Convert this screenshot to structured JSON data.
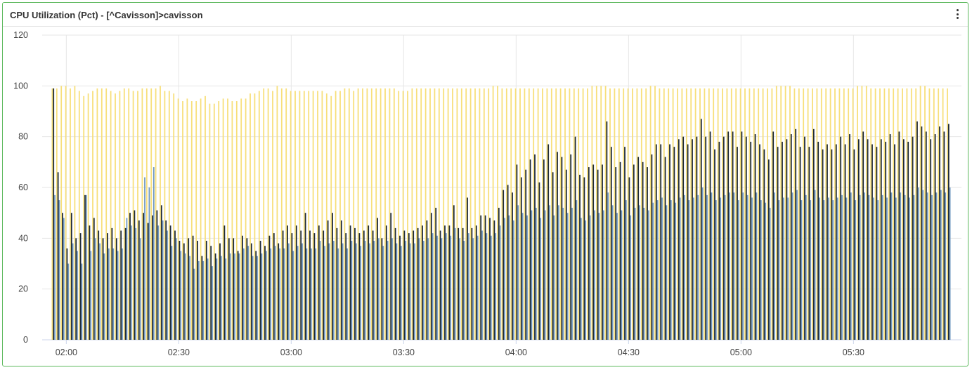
{
  "panel": {
    "title": "CPU Utilization (Pct) - [^Cavisson]>cavisson",
    "menu_icon": "more-vertical-icon"
  },
  "colors": {
    "border": "#5cb85c",
    "series_total": "#f7df7a",
    "series_user": "#1f2a36",
    "series_system": "#6f98c0",
    "grid": "#e6e6e6"
  },
  "chart_data": {
    "type": "bar",
    "title": "CPU Utilization (Pct) - [^Cavisson]>cavisson",
    "xlabel": "",
    "ylabel": "",
    "ylim": [
      0,
      120
    ],
    "yticks": [
      "0",
      "20",
      "40",
      "60",
      "80",
      "100",
      "120"
    ],
    "xticks": [
      "02:00",
      "02:30",
      "03:00",
      "03:30",
      "04:00",
      "04:30",
      "05:00",
      "05:30"
    ],
    "x_range": [
      "01:56",
      "05:56"
    ],
    "interval_minutes": 2,
    "grid": true,
    "legend": "none",
    "series": [
      {
        "values": [
          99,
          99,
          100,
          100,
          99,
          100,
          98,
          96,
          97,
          98,
          99,
          99,
          99,
          98,
          97,
          98,
          99,
          99,
          98,
          98,
          99,
          99,
          99,
          99,
          100,
          98,
          98,
          97,
          95,
          94,
          95,
          94,
          94,
          95,
          96,
          93,
          93,
          94,
          95,
          95,
          94,
          94,
          95,
          95,
          97,
          97,
          98,
          99,
          99,
          98,
          100,
          99,
          99,
          98,
          98,
          98,
          98,
          98,
          98,
          98,
          98,
          97,
          96,
          98,
          98,
          99,
          99,
          98,
          99,
          99,
          99,
          99,
          99,
          99,
          99,
          99,
          99,
          98,
          98,
          98,
          99,
          99,
          99,
          99,
          99,
          99,
          99,
          99,
          99,
          99,
          99,
          99,
          99,
          99,
          99,
          99,
          99,
          99,
          100,
          100,
          99,
          99,
          99,
          99,
          99,
          99,
          99,
          99,
          99,
          99,
          99,
          99,
          99,
          99,
          99,
          99,
          99,
          99,
          99,
          99,
          100,
          100,
          100,
          100,
          99,
          99,
          99,
          99,
          99,
          99,
          99,
          99,
          99,
          100,
          100,
          99,
          99,
          99,
          99,
          99,
          99,
          99,
          99,
          99,
          99,
          99,
          99,
          99,
          99,
          99,
          99,
          99,
          99,
          99,
          99,
          99,
          99,
          99,
          99,
          99,
          99,
          100,
          100,
          100,
          100,
          99,
          99,
          99,
          99,
          99,
          99,
          99,
          99,
          99,
          99,
          99,
          99,
          99,
          99,
          100,
          100,
          100,
          99,
          99,
          99,
          99,
          99,
          99,
          99,
          99,
          99,
          99,
          99,
          100,
          100,
          99,
          99,
          99,
          99,
          99
        ]
      },
      {
        "values": [
          99,
          66,
          50,
          36,
          50,
          40,
          42,
          57,
          45,
          48,
          43,
          40,
          42,
          44,
          40,
          43,
          44,
          50,
          51,
          47,
          50,
          46,
          49,
          51,
          53,
          47,
          45,
          43,
          39,
          38,
          40,
          41,
          39,
          33,
          39,
          37,
          34,
          38,
          45,
          40,
          40,
          35,
          41,
          40,
          38,
          35,
          39,
          37,
          41,
          42,
          38,
          43,
          45,
          42,
          45,
          43,
          50,
          43,
          42,
          45,
          43,
          47,
          50,
          44,
          47,
          42,
          45,
          44,
          42,
          43,
          45,
          43,
          48,
          40,
          45,
          50,
          44,
          41,
          43,
          42,
          43,
          44,
          45,
          47,
          50,
          52,
          43,
          45,
          45,
          53,
          44,
          44,
          56,
          44,
          45,
          49,
          49,
          48,
          47,
          52,
          59,
          61,
          58,
          69,
          64,
          67,
          71,
          73,
          62,
          71,
          77,
          66,
          74,
          72,
          67,
          73,
          80,
          65,
          64,
          68,
          69,
          67,
          69,
          86,
          76,
          68,
          70,
          76,
          64,
          69,
          72,
          70,
          68,
          73,
          77,
          77,
          72,
          77,
          76,
          79,
          80,
          77,
          79,
          80,
          87,
          80,
          82,
          75,
          78,
          80,
          82,
          82,
          76,
          82,
          80,
          78,
          81,
          77,
          75,
          71,
          82,
          76,
          78,
          79,
          81,
          83,
          76,
          80,
          76,
          83,
          78,
          75,
          77,
          75,
          77,
          80,
          77,
          81,
          75,
          79,
          82,
          79,
          77,
          76,
          79,
          78,
          81,
          77,
          82,
          79,
          78,
          80,
          86,
          84,
          82,
          79,
          81,
          84,
          82,
          85
        ]
      },
      {
        "values": [
          57,
          55,
          48,
          30,
          38,
          35,
          30,
          57,
          35,
          40,
          38,
          34,
          36,
          36,
          35,
          36,
          48,
          45,
          44,
          40,
          64,
          60,
          68,
          45,
          47,
          43,
          37,
          40,
          35,
          34,
          33,
          28,
          31,
          31,
          32,
          29,
          32,
          33,
          32,
          34,
          34,
          34,
          36,
          37,
          33,
          33,
          34,
          35,
          36,
          37,
          36,
          36,
          38,
          35,
          37,
          38,
          36,
          36,
          36,
          39,
          37,
          38,
          39,
          36,
          38,
          36,
          39,
          38,
          37,
          39,
          38,
          39,
          40,
          37,
          39,
          40,
          38,
          37,
          39,
          38,
          38,
          40,
          39,
          40,
          42,
          41,
          40,
          42,
          41,
          44,
          40,
          39,
          42,
          40,
          41,
          43,
          42,
          41,
          42,
          45,
          48,
          49,
          47,
          53,
          50,
          49,
          51,
          52,
          48,
          51,
          53,
          49,
          53,
          52,
          50,
          52,
          55,
          48,
          47,
          49,
          51,
          50,
          51,
          58,
          53,
          50,
          51,
          55,
          49,
          52,
          53,
          52,
          51,
          54,
          55,
          56,
          53,
          55,
          54,
          56,
          57,
          55,
          56,
          57,
          60,
          57,
          58,
          55,
          56,
          57,
          58,
          58,
          55,
          58,
          57,
          56,
          58,
          55,
          54,
          52,
          58,
          55,
          56,
          56,
          58,
          59,
          55,
          57,
          55,
          59,
          56,
          55,
          56,
          55,
          56,
          57,
          56,
          58,
          55,
          57,
          58,
          57,
          56,
          55,
          57,
          56,
          58,
          56,
          58,
          57,
          56,
          57,
          60,
          59,
          58,
          57,
          58,
          59,
          58,
          60
        ]
      }
    ]
  }
}
